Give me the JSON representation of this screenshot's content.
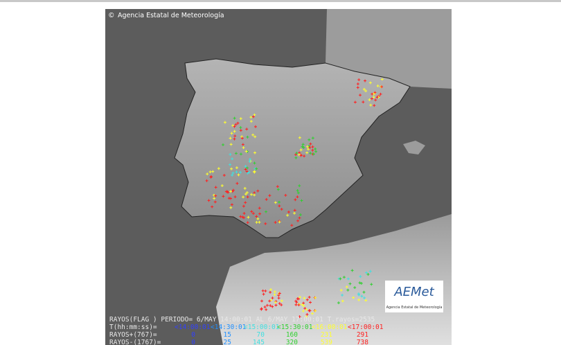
{
  "copyright": "Agencia Estatal de Meteorología",
  "logo": {
    "name": "AEMet",
    "subtitle": "Agencia Estatal de Meteorología"
  },
  "legend": {
    "header": "RAYOS(FLAG ) PERIODO= 6/MAY 14:00:01 AL 6/MAY 17:00:01 T.rayos=2535",
    "time_label": "T(hh:mm:ss)=",
    "times": [
      "<14:00:01",
      "<14:30:01",
      "<15:00:01",
      "<15:30:01",
      "<16:00:01",
      "<17:00:01"
    ],
    "positive_label": "RAYOS+(767)=",
    "positive": [
      "0",
      "15",
      "70",
      "160",
      "231",
      "291"
    ],
    "negative_label": "RAYOS-(1767)=",
    "negative": [
      "0",
      "25",
      "145",
      "320",
      "539",
      "738"
    ]
  }
}
